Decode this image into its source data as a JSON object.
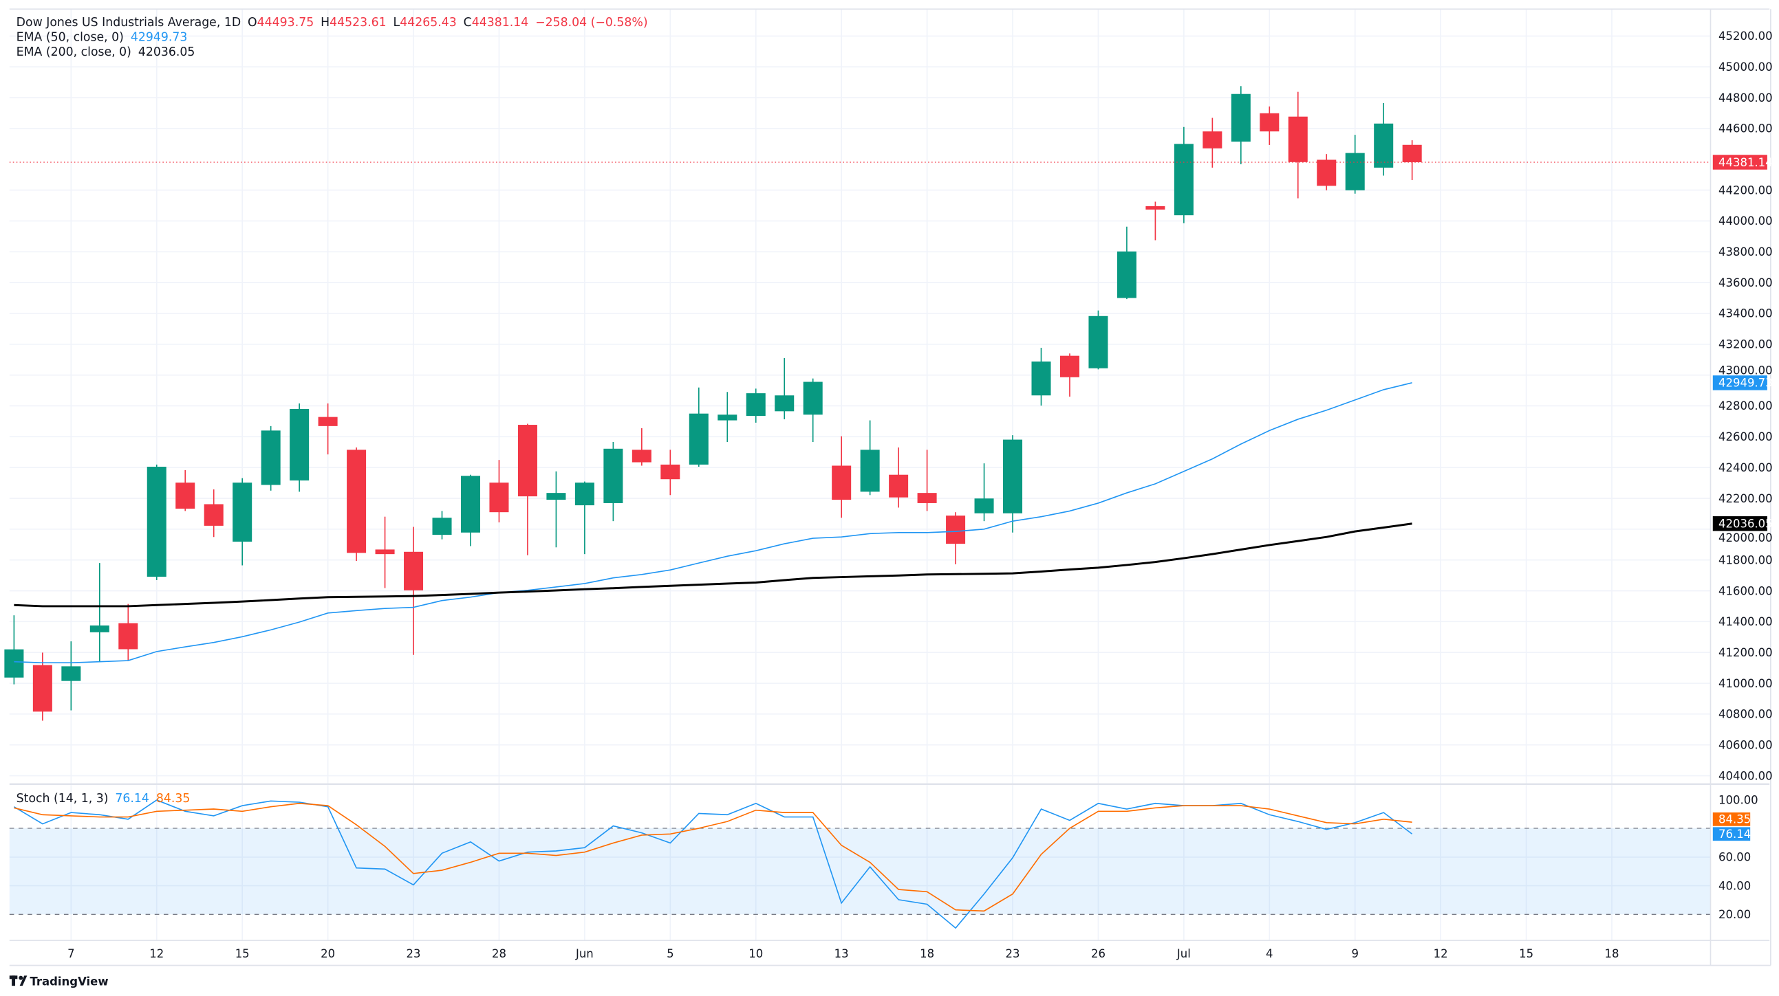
{
  "header": {
    "symbol": "Dow Jones US Industrials Average, 1D",
    "o_label": "O",
    "o": "44493.75",
    "h_label": "H",
    "h": "44523.61",
    "l_label": "L",
    "l": "44265.43",
    "c_label": "C",
    "c": "44381.14",
    "change": "−258.04 (−0.58%)",
    "ema50_label": "EMA (50, close, 0)",
    "ema50_value": "42949.73",
    "ema200_label": "EMA (200, close, 0)",
    "ema200_value": "42036.05",
    "stoch_label": "Stoch (14, 1, 3)",
    "stoch_k": "76.14",
    "stoch_d": "84.35"
  },
  "brand": "TradingView",
  "colors": {
    "up": "#089981",
    "down": "#f23645",
    "ema50": "#2196f3",
    "ema200": "#000000",
    "stoch_k": "#2196f3",
    "stoch_d": "#ff6d00"
  },
  "price_tags": {
    "last": "44381.14",
    "ema50": "42949.73",
    "ema200": "42036.05",
    "stoch_d": "84.35",
    "stoch_k": "76.14"
  },
  "chart_data": {
    "type": "candlestick",
    "title": "Dow Jones US Industrials Average, 1D",
    "y_ticks": [
      "45200.00",
      "45000.00",
      "44800.00",
      "44600.00",
      "44200.00",
      "44000.00",
      "43800.00",
      "43600.00",
      "43400.00",
      "43200.00",
      "43000.00",
      "42800.00",
      "42600.00",
      "42400.00",
      "42200.00",
      "42000.00",
      "41800.00",
      "41600.00",
      "41400.00",
      "41200.00",
      "41000.00",
      "40800.00",
      "40600.00",
      "40400.00"
    ],
    "ylim": [
      40300,
      45350
    ],
    "x_ticks": [
      {
        "label": "7",
        "bar": 2
      },
      {
        "label": "12",
        "bar": 5
      },
      {
        "label": "15",
        "bar": 8
      },
      {
        "label": "20",
        "bar": 11
      },
      {
        "label": "23",
        "bar": 14
      },
      {
        "label": "28",
        "bar": 17
      },
      {
        "label": "Jun",
        "bar": 20
      },
      {
        "label": "5",
        "bar": 23
      },
      {
        "label": "10",
        "bar": 26
      },
      {
        "label": "13",
        "bar": 29
      },
      {
        "label": "18",
        "bar": 32
      },
      {
        "label": "23",
        "bar": 35
      },
      {
        "label": "26",
        "bar": 38
      },
      {
        "label": "Jul",
        "bar": 41
      },
      {
        "label": "4",
        "bar": 44
      },
      {
        "label": "9",
        "bar": 47
      },
      {
        "label": "12",
        "bar": 50
      },
      {
        "label": "15",
        "bar": 53
      },
      {
        "label": "18",
        "bar": 56
      }
    ],
    "candles": [
      [
        41037,
        41441,
        40993,
        41220
      ],
      [
        41118,
        41199,
        40757,
        40816
      ],
      [
        41015,
        41272,
        40824,
        41110
      ],
      [
        41331,
        41780,
        41140,
        41375
      ],
      [
        41390,
        41515,
        41147,
        41221
      ],
      [
        41691,
        42419,
        41669,
        42405
      ],
      [
        42302,
        42383,
        42118,
        42133
      ],
      [
        42162,
        42258,
        41949,
        42022
      ],
      [
        41919,
        42331,
        41765,
        42302
      ],
      [
        42287,
        42669,
        42250,
        42640
      ],
      [
        42316,
        42816,
        42243,
        42780
      ],
      [
        42728,
        42816,
        42485,
        42669
      ],
      [
        42515,
        42530,
        41794,
        41846
      ],
      [
        41868,
        42081,
        41618,
        41838
      ],
      [
        41853,
        42015,
        41184,
        41603
      ],
      [
        41963,
        42118,
        41934,
        42074
      ],
      [
        41978,
        42353,
        41890,
        42346
      ],
      [
        42302,
        42449,
        42044,
        42110
      ],
      [
        42677,
        42684,
        41831,
        42213
      ],
      [
        42191,
        42375,
        41882,
        42235
      ],
      [
        42155,
        42309,
        41838,
        42302
      ],
      [
        42169,
        42566,
        42052,
        42522
      ],
      [
        42515,
        42655,
        42412,
        42434
      ],
      [
        42419,
        42515,
        42221,
        42324
      ],
      [
        42419,
        42919,
        42405,
        42750
      ],
      [
        42706,
        42890,
        42566,
        42743
      ],
      [
        42735,
        42912,
        42691,
        42882
      ],
      [
        42765,
        43110,
        42713,
        42868
      ],
      [
        42743,
        42978,
        42566,
        42956
      ],
      [
        42412,
        42603,
        42074,
        42191
      ],
      [
        42243,
        42706,
        42221,
        42515
      ],
      [
        42353,
        42530,
        42140,
        42206
      ],
      [
        42235,
        42515,
        42118,
        42169
      ],
      [
        42088,
        42110,
        41772,
        41905
      ],
      [
        42103,
        42427,
        42052,
        42199
      ],
      [
        42103,
        42610,
        41978,
        42581
      ],
      [
        42868,
        43177,
        42802,
        43088
      ],
      [
        43125,
        43140,
        42860,
        42986
      ],
      [
        43044,
        43419,
        43037,
        43383
      ],
      [
        43500,
        43963,
        43493,
        43802
      ],
      [
        44096,
        44125,
        43875,
        44074
      ],
      [
        44037,
        44610,
        43986,
        44500
      ],
      [
        44581,
        44669,
        44346,
        44471
      ],
      [
        44515,
        44875,
        44368,
        44824
      ],
      [
        44699,
        44743,
        44493,
        44581
      ],
      [
        44677,
        44838,
        44147,
        44382
      ],
      [
        44397,
        44434,
        44199,
        44228
      ],
      [
        44199,
        44559,
        44177,
        44441
      ],
      [
        44346,
        44765,
        44294,
        44632
      ],
      [
        44493.75,
        44523.61,
        44265.43,
        44381.14
      ]
    ],
    "ema50": [
      41140,
      41133,
      41133,
      41140,
      41147,
      41206,
      41236,
      41265,
      41302,
      41346,
      41397,
      41456,
      41471,
      41485,
      41493,
      41537,
      41559,
      41588,
      41603,
      41625,
      41647,
      41684,
      41706,
      41735,
      41780,
      41824,
      41860,
      41905,
      41941,
      41949,
      41971,
      41978,
      41978,
      41985,
      42000,
      42052,
      42081,
      42118,
      42169,
      42235,
      42294,
      42375,
      42456,
      42552,
      42640,
      42713,
      42772,
      42838,
      42905,
      42949.73
    ],
    "ema200": [
      41507,
      41500,
      41500,
      41500,
      41500,
      41507,
      41515,
      41522,
      41530,
      41540,
      41550,
      41559,
      41561,
      41563,
      41566,
      41573,
      41580,
      41588,
      41595,
      41602,
      41610,
      41617,
      41625,
      41632,
      41640,
      41647,
      41654,
      41669,
      41684,
      41689,
      41694,
      41699,
      41706,
      41708,
      41710,
      41713,
      41725,
      41738,
      41750,
      41768,
      41787,
      41812,
      41838,
      41868,
      41897,
      41923,
      41949,
      41985,
      42010,
      42036.05
    ],
    "stoch": {
      "y_ticks": [
        "100.00",
        "60.00",
        "40.00",
        "20.00"
      ],
      "bands": [
        20,
        80
      ],
      "k": [
        95.1,
        83.2,
        91.1,
        89.6,
        86.4,
        99.8,
        91.9,
        88.8,
        95.9,
        99.1,
        98.3,
        95.1,
        52.4,
        51.6,
        40.6,
        62.7,
        70.6,
        57.2,
        63.5,
        64.3,
        66.6,
        81.7,
        76.9,
        69.8,
        90.4,
        89.6,
        97.5,
        88.0,
        88.0,
        27.9,
        53.2,
        30.3,
        27.1,
        10.5,
        34.2,
        59.5,
        93.5,
        85.6,
        97.5,
        93.5,
        97.5,
        95.9,
        95.9,
        97.5,
        89.6,
        84.8,
        79.3,
        84.0,
        91.1,
        76.14
      ],
      "d": [
        94.3,
        89.6,
        88.8,
        88.0,
        88.0,
        91.9,
        92.7,
        93.5,
        91.9,
        95.1,
        97.5,
        95.9,
        82.5,
        67.4,
        48.5,
        50.8,
        56.4,
        62.7,
        62.7,
        61.1,
        63.5,
        69.8,
        75.3,
        76.1,
        80.1,
        84.8,
        92.7,
        91.1,
        91.1,
        68.2,
        56.4,
        37.4,
        35.8,
        23.2,
        22.4,
        34.2,
        61.9,
        80.1,
        91.9,
        91.9,
        94.3,
        95.9,
        95.9,
        95.9,
        93.5,
        88.8,
        84.0,
        83.2,
        86.4,
        84.35
      ]
    }
  }
}
